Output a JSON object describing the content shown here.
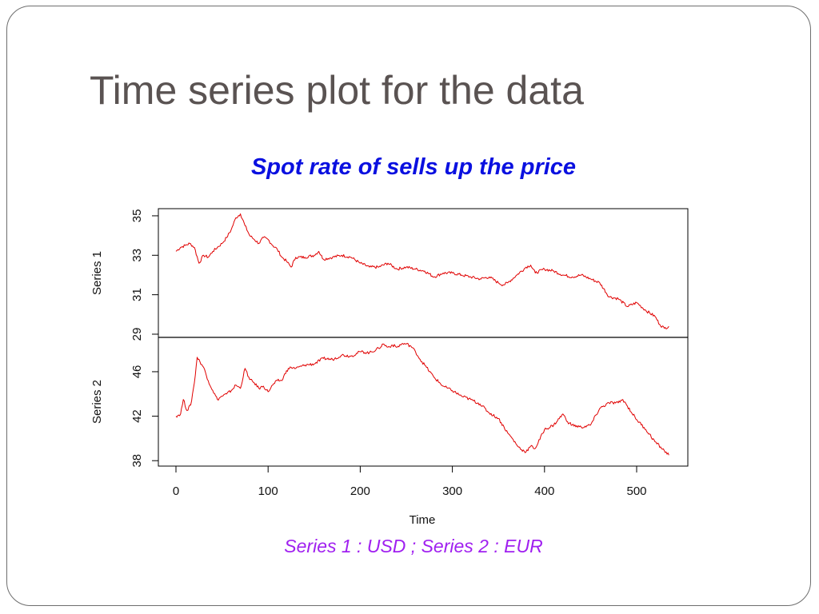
{
  "slide": {
    "title": "Time series plot for the data"
  },
  "chart_data": {
    "type": "line",
    "title": "Spot rate of sells up the price",
    "xlabel": "Time",
    "caption": "Series 1 : USD ; Series 2 : EUR",
    "xlim": [
      0,
      550
    ],
    "x_ticks": [
      0,
      100,
      200,
      300,
      400,
      500
    ],
    "line_color": "#e00000",
    "title_color": "#0a10e0",
    "caption_color": "#a020f0",
    "panels": [
      {
        "name": "Series 1",
        "ylim": [
          29,
          35.2
        ],
        "y_ticks": [
          29,
          31,
          33,
          35
        ],
        "x": [
          0,
          5,
          10,
          15,
          20,
          25,
          30,
          35,
          40,
          45,
          50,
          55,
          60,
          65,
          70,
          75,
          80,
          85,
          90,
          95,
          100,
          105,
          110,
          115,
          120,
          125,
          130,
          140,
          150,
          155,
          160,
          170,
          180,
          190,
          200,
          210,
          220,
          230,
          240,
          250,
          260,
          270,
          280,
          290,
          300,
          310,
          320,
          330,
          340,
          350,
          355,
          360,
          370,
          380,
          385,
          390,
          400,
          410,
          420,
          430,
          440,
          450,
          460,
          470,
          480,
          490,
          500,
          510,
          520,
          525,
          530,
          535
        ],
        "values": [
          33.2,
          33.4,
          33.5,
          33.6,
          33.4,
          32.6,
          33.0,
          32.9,
          33.2,
          33.4,
          33.6,
          33.9,
          34.3,
          34.9,
          35.1,
          34.5,
          34.0,
          33.8,
          33.6,
          33.9,
          33.8,
          33.5,
          33.3,
          32.9,
          32.7,
          32.4,
          32.9,
          32.9,
          33.0,
          33.2,
          32.8,
          32.9,
          33.0,
          32.9,
          32.6,
          32.4,
          32.4,
          32.6,
          32.3,
          32.4,
          32.3,
          32.2,
          31.9,
          32.1,
          32.1,
          32.0,
          31.9,
          31.8,
          31.9,
          31.6,
          31.5,
          31.6,
          32.0,
          32.4,
          32.5,
          32.1,
          32.3,
          32.2,
          32.0,
          31.9,
          32.0,
          31.8,
          31.6,
          30.9,
          30.8,
          30.4,
          30.6,
          30.2,
          29.9,
          29.5,
          29.3,
          29.4
        ]
      },
      {
        "name": "Series 2",
        "ylim": [
          37.8,
          48.8
        ],
        "y_ticks": [
          38,
          42,
          46
        ],
        "x": [
          0,
          5,
          8,
          12,
          16,
          20,
          23,
          26,
          30,
          35,
          40,
          45,
          50,
          55,
          60,
          65,
          70,
          75,
          80,
          85,
          90,
          95,
          100,
          105,
          110,
          115,
          120,
          125,
          130,
          140,
          150,
          160,
          170,
          180,
          190,
          200,
          210,
          220,
          225,
          230,
          235,
          240,
          245,
          250,
          255,
          260,
          265,
          270,
          280,
          290,
          300,
          310,
          320,
          330,
          340,
          350,
          360,
          365,
          370,
          375,
          380,
          385,
          390,
          400,
          410,
          420,
          425,
          430,
          440,
          450,
          460,
          470,
          480,
          485,
          490,
          500,
          510,
          520,
          530,
          535
        ],
        "values": [
          42.0,
          42.2,
          43.5,
          42.5,
          43.0,
          45.0,
          47.3,
          46.9,
          46.4,
          45.2,
          44.3,
          43.5,
          43.8,
          44.0,
          44.3,
          44.8,
          44.5,
          46.3,
          45.3,
          45.0,
          44.5,
          44.7,
          44.2,
          44.8,
          45.2,
          45.2,
          46.1,
          46.4,
          46.3,
          46.6,
          46.7,
          47.2,
          47.1,
          47.5,
          47.4,
          47.8,
          47.7,
          48.1,
          48.5,
          48.2,
          48.4,
          48.2,
          48.5,
          48.5,
          48.3,
          47.8,
          47.1,
          46.6,
          45.5,
          44.7,
          44.3,
          43.8,
          43.5,
          43.1,
          42.3,
          41.8,
          40.5,
          40.0,
          39.4,
          39.0,
          38.8,
          39.3,
          39.1,
          40.8,
          41.2,
          42.2,
          41.5,
          41.2,
          41.0,
          41.2,
          42.7,
          43.2,
          43.2,
          43.5,
          42.9,
          41.7,
          40.8,
          39.7,
          38.9,
          38.5
        ]
      }
    ]
  }
}
